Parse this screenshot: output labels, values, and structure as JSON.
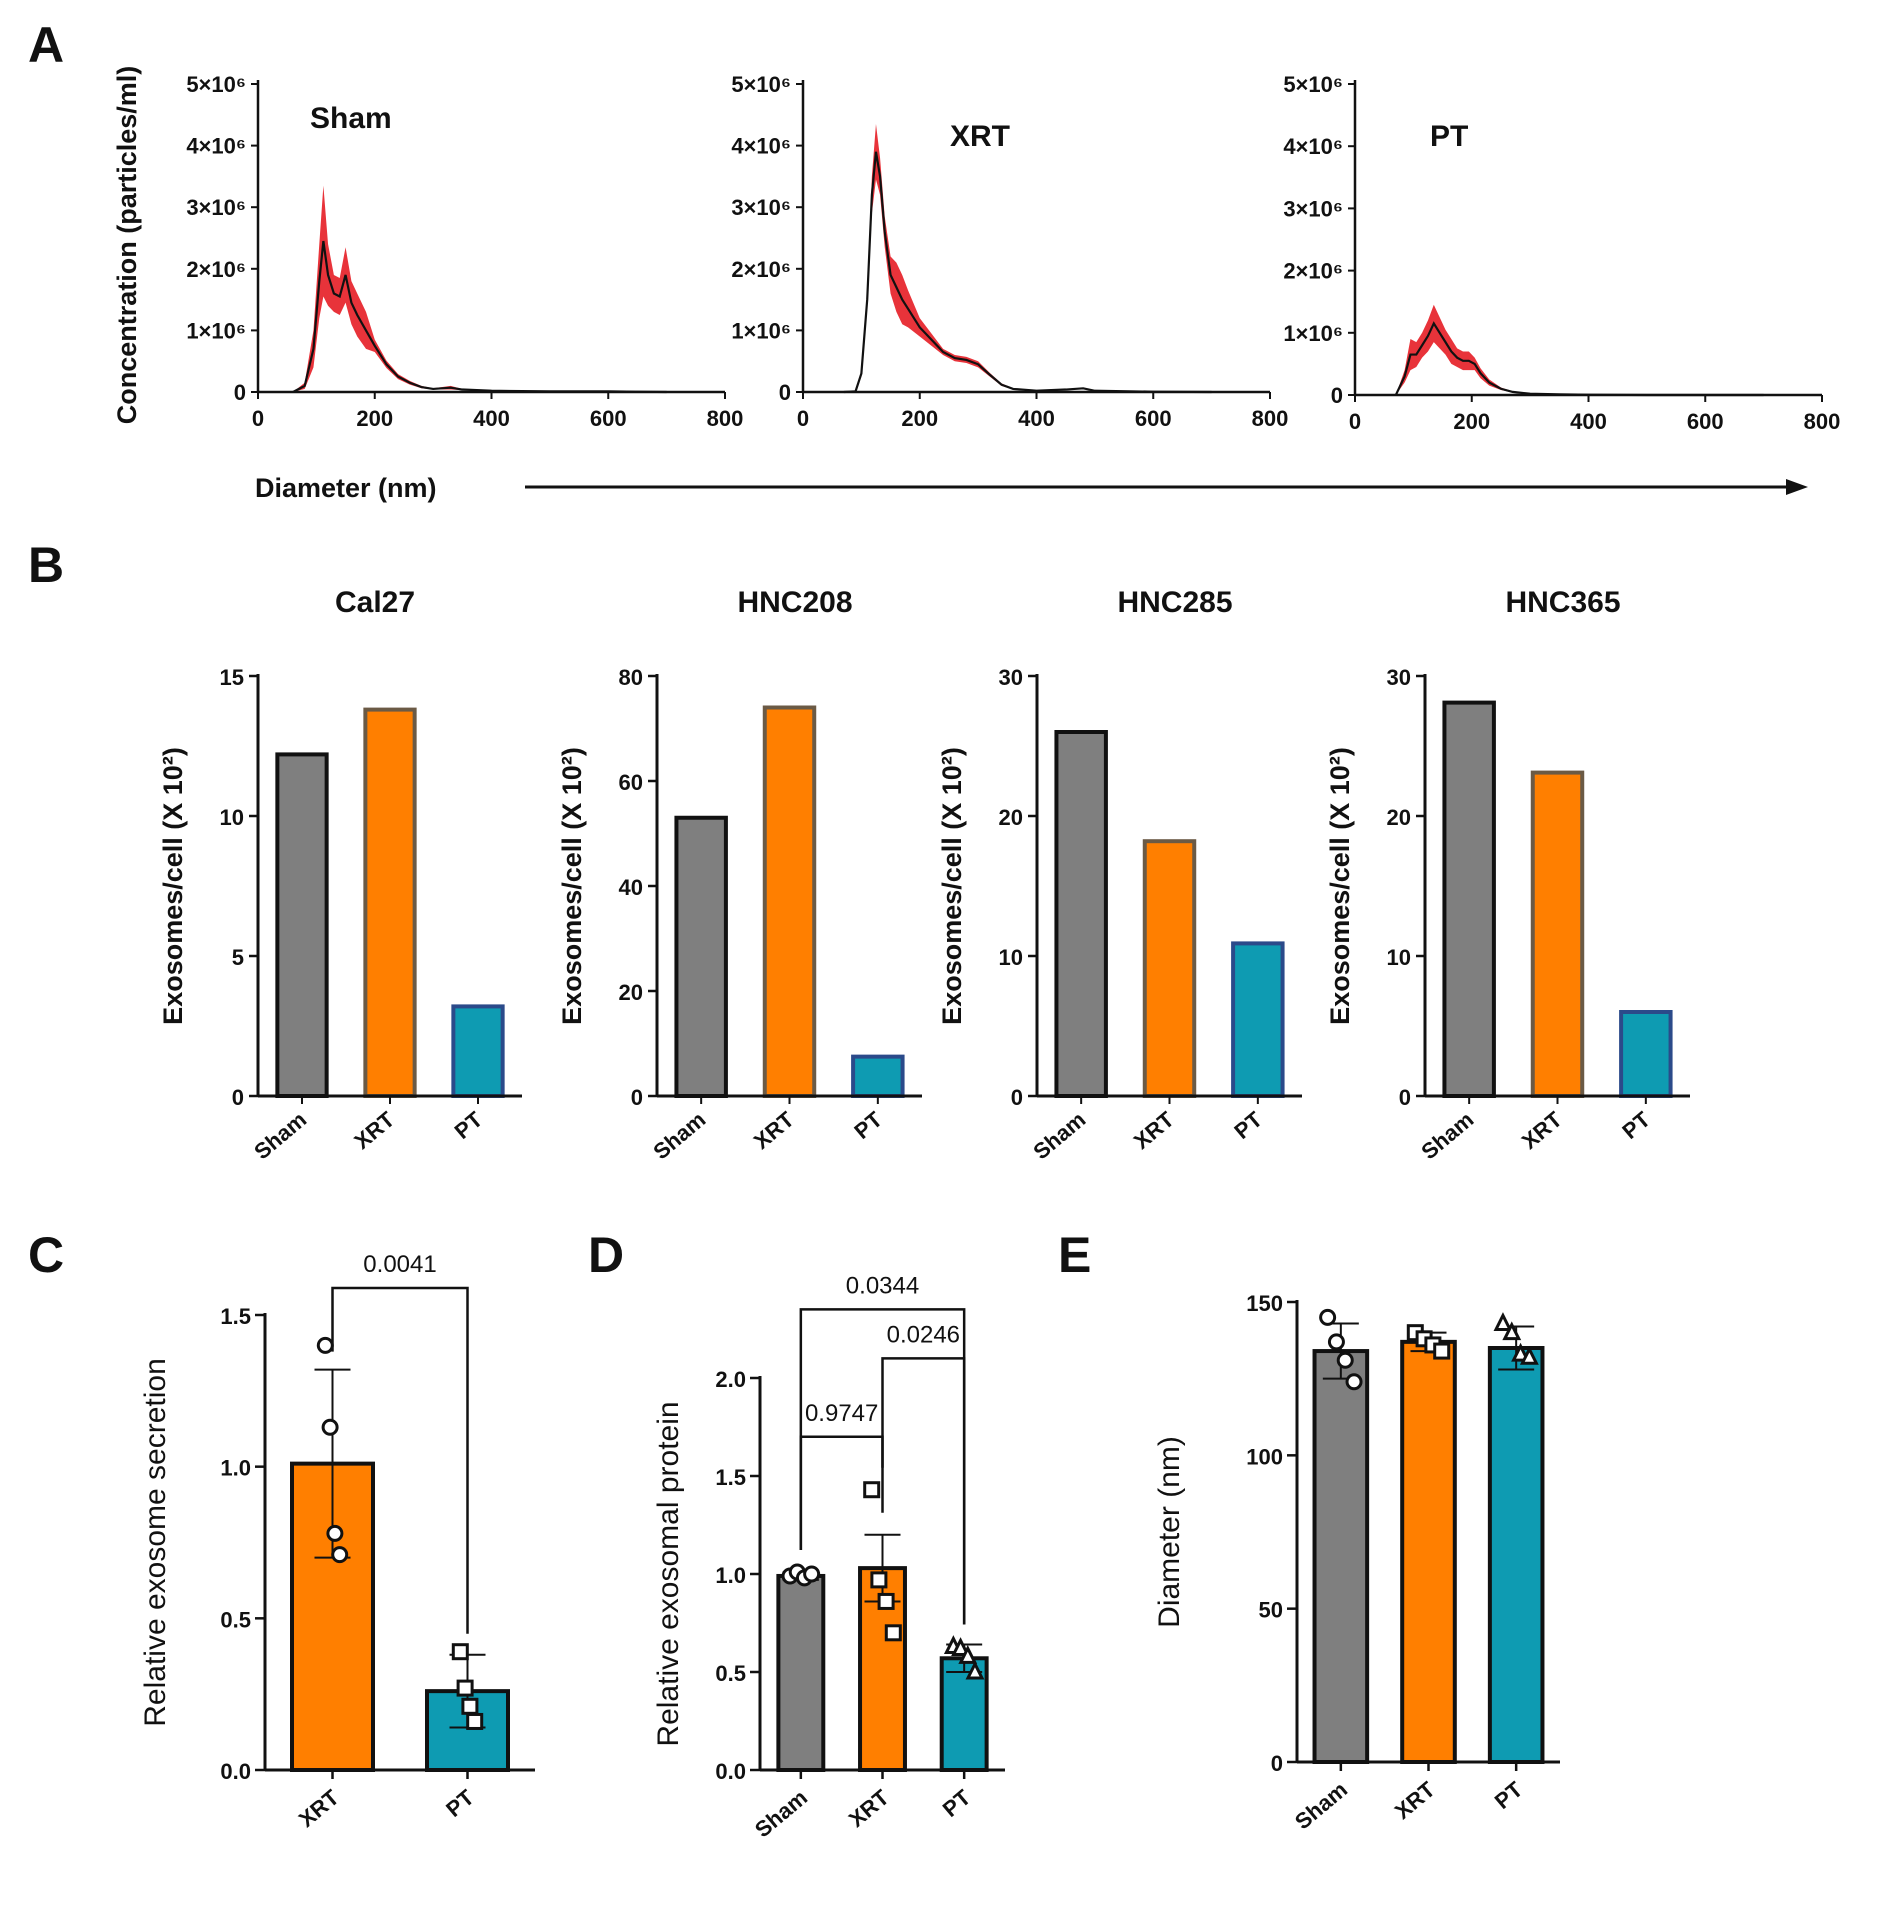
{
  "panel_labels": {
    "A": "A",
    "B": "B",
    "C": "C",
    "D": "D",
    "E": "E"
  },
  "colors": {
    "sham": "#7f7f7f",
    "xrt": "#ff7f00",
    "pt": "#0e9bb2",
    "nta_band": "#e8333a",
    "line": "#111111"
  },
  "chart_data": [
    {
      "id": "A1",
      "type": "line",
      "title": "Sham",
      "xlabel": "Diameter (nm)",
      "ylabel": "Concentration (particles/ml)",
      "xlim": [
        0,
        800
      ],
      "ylim": [
        0,
        5000000
      ],
      "xticks": [
        "0",
        "200",
        "400",
        "600",
        "800"
      ],
      "yticks": [
        "0",
        "1×10⁶",
        "2×10⁶",
        "3×10⁶",
        "4×10⁶",
        "5×10⁶"
      ],
      "x": [
        60,
        80,
        95,
        105,
        112,
        120,
        130,
        140,
        150,
        160,
        170,
        185,
        200,
        220,
        240,
        260,
        280,
        300,
        330,
        350,
        400,
        500,
        600,
        650,
        700
      ],
      "y": [
        0,
        100000,
        700000,
        1800000,
        2450000,
        1900000,
        1600000,
        1550000,
        1900000,
        1450000,
        1250000,
        1000000,
        750000,
        450000,
        250000,
        150000,
        80000,
        50000,
        70000,
        40000,
        20000,
        10000,
        10000,
        5000,
        0
      ],
      "band": [
        0,
        50000,
        300000,
        600000,
        900000,
        500000,
        300000,
        300000,
        450000,
        350000,
        350000,
        300000,
        100000,
        60000,
        40000,
        30000,
        20000,
        10000,
        30000,
        10000,
        5000,
        5000,
        5000,
        0,
        0
      ]
    },
    {
      "id": "A2",
      "type": "line",
      "title": "XRT",
      "xlabel": "Diameter (nm)",
      "ylabel": "Concentration (particles/ml)",
      "xlim": [
        0,
        800
      ],
      "ylim": [
        0,
        5000000
      ],
      "xticks": [
        "0",
        "200",
        "400",
        "600",
        "800"
      ],
      "yticks": [
        "0",
        "1×10⁶",
        "2×10⁶",
        "3×10⁶",
        "4×10⁶",
        "5×10⁶"
      ],
      "x": [
        70,
        90,
        100,
        110,
        118,
        125,
        132,
        140,
        150,
        160,
        170,
        180,
        200,
        220,
        240,
        260,
        280,
        300,
        320,
        340,
        360,
        400,
        450,
        480,
        500,
        600,
        700
      ],
      "y": [
        0,
        10000,
        300000,
        1500000,
        3200000,
        3900000,
        3500000,
        2600000,
        1900000,
        1700000,
        1500000,
        1350000,
        1050000,
        850000,
        650000,
        550000,
        520000,
        450000,
        280000,
        120000,
        50000,
        20000,
        40000,
        60000,
        20000,
        5000,
        0
      ],
      "band": [
        0,
        5000,
        50000,
        150000,
        300000,
        450000,
        300000,
        250000,
        300000,
        400000,
        400000,
        300000,
        150000,
        100000,
        50000,
        50000,
        50000,
        50000,
        30000,
        20000,
        10000,
        5000,
        10000,
        10000,
        5000,
        0,
        0
      ]
    },
    {
      "id": "A3",
      "type": "line",
      "title": "PT",
      "xlabel": "Diameter (nm)",
      "ylabel": "Concentration (particles/ml)",
      "xlim": [
        0,
        800
      ],
      "ylim": [
        0,
        5000000
      ],
      "xticks": [
        "0",
        "200",
        "400",
        "600",
        "800"
      ],
      "yticks": [
        "0",
        "1×10⁶",
        "2×10⁶",
        "3×10⁶",
        "4×10⁶",
        "5×10⁶"
      ],
      "x": [
        70,
        85,
        95,
        105,
        115,
        125,
        135,
        145,
        155,
        165,
        175,
        185,
        195,
        205,
        215,
        230,
        250,
        270,
        300,
        350,
        400,
        500,
        600,
        700
      ],
      "y": [
        0,
        300000,
        650000,
        650000,
        800000,
        950000,
        1150000,
        1000000,
        850000,
        700000,
        600000,
        550000,
        550000,
        500000,
        350000,
        200000,
        100000,
        50000,
        20000,
        10000,
        5000,
        0,
        0,
        0
      ],
      "band": [
        0,
        100000,
        250000,
        200000,
        200000,
        250000,
        300000,
        250000,
        200000,
        200000,
        150000,
        150000,
        150000,
        100000,
        80000,
        50000,
        20000,
        10000,
        5000,
        0,
        0,
        0,
        0,
        0
      ]
    },
    {
      "id": "B1",
      "type": "bar",
      "title": "Cal27",
      "ylabel": "Exosomes/cell (X 10²)",
      "categories": [
        "Sham",
        "XRT",
        "PT"
      ],
      "values": [
        12.2,
        13.8,
        3.2
      ],
      "ylim": [
        0,
        15
      ],
      "yticks": [
        "0",
        "5",
        "10",
        "15"
      ]
    },
    {
      "id": "B2",
      "type": "bar",
      "title": "HNC208",
      "ylabel": "Exosomes/cell (X 10²)",
      "categories": [
        "Sham",
        "XRT",
        "PT"
      ],
      "values": [
        53,
        74,
        7.5
      ],
      "ylim": [
        0,
        80
      ],
      "yticks": [
        "0",
        "20",
        "40",
        "60",
        "80"
      ]
    },
    {
      "id": "B3",
      "type": "bar",
      "title": "HNC285",
      "ylabel": "Exosomes/cell (X 10²)",
      "categories": [
        "Sham",
        "XRT",
        "PT"
      ],
      "values": [
        26,
        18.2,
        10.9
      ],
      "ylim": [
        0,
        30
      ],
      "yticks": [
        "0",
        "10",
        "20",
        "30"
      ]
    },
    {
      "id": "B4",
      "type": "bar",
      "title": "HNC365",
      "ylabel": "Exosomes/cell (X 10²)",
      "categories": [
        "Sham",
        "XRT",
        "PT"
      ],
      "values": [
        28.1,
        23.1,
        6
      ],
      "ylim": [
        0,
        30
      ],
      "yticks": [
        "0",
        "10",
        "20",
        "30"
      ]
    },
    {
      "id": "C",
      "type": "bar",
      "ylabel": "Relative exosome secretion",
      "categories": [
        "XRT",
        "PT"
      ],
      "values": [
        1.01,
        0.26
      ],
      "sd": [
        0.31,
        0.12
      ],
      "points": [
        [
          1.4,
          1.13,
          0.78,
          0.71
        ],
        [
          0.39,
          0.27,
          0.21,
          0.16
        ]
      ],
      "markers": [
        "circle",
        "square"
      ],
      "ylim": [
        0,
        1.5
      ],
      "yticks": [
        "0.0",
        "0.5",
        "1.0",
        "1.5"
      ],
      "comparisons": [
        {
          "from": 0,
          "to": 1,
          "label": "0.0041"
        }
      ]
    },
    {
      "id": "D",
      "type": "bar",
      "ylabel": "Relative exosomal protein",
      "categories": [
        "Sham",
        "XRT",
        "PT"
      ],
      "values": [
        0.99,
        1.03,
        0.57
      ],
      "sd": [
        0.02,
        0.17,
        0.07
      ],
      "points": [
        [
          0.99,
          1.01,
          0.98,
          1.0
        ],
        [
          1.43,
          0.97,
          0.86,
          0.7
        ],
        [
          0.63,
          0.62,
          0.58,
          0.5
        ]
      ],
      "markers": [
        "circle",
        "square",
        "triangle"
      ],
      "ylim": [
        0,
        2.0
      ],
      "yticks": [
        "0.0",
        "0.5",
        "1.0",
        "1.5",
        "2.0"
      ],
      "comparisons": [
        {
          "from": 0,
          "to": 1,
          "label": "0.9747",
          "level": 1.7
        },
        {
          "from": 1,
          "to": 2,
          "label": "0.0246",
          "level": 2.1
        },
        {
          "from": 0,
          "to": 2,
          "label": "0.0344",
          "level": 2.35
        }
      ]
    },
    {
      "id": "E",
      "type": "bar",
      "ylabel": "Diameter (nm)",
      "categories": [
        "Sham",
        "XRT",
        "PT"
      ],
      "values": [
        134,
        137,
        135
      ],
      "sd": [
        9,
        3,
        7
      ],
      "points": [
        [
          145,
          137,
          131,
          124
        ],
        [
          140,
          138,
          136,
          134
        ],
        [
          143,
          140,
          133,
          132
        ]
      ],
      "markers": [
        "circle",
        "square",
        "triangle"
      ],
      "ylim": [
        0,
        150
      ],
      "yticks": [
        "0",
        "50",
        "100",
        "150"
      ]
    }
  ]
}
